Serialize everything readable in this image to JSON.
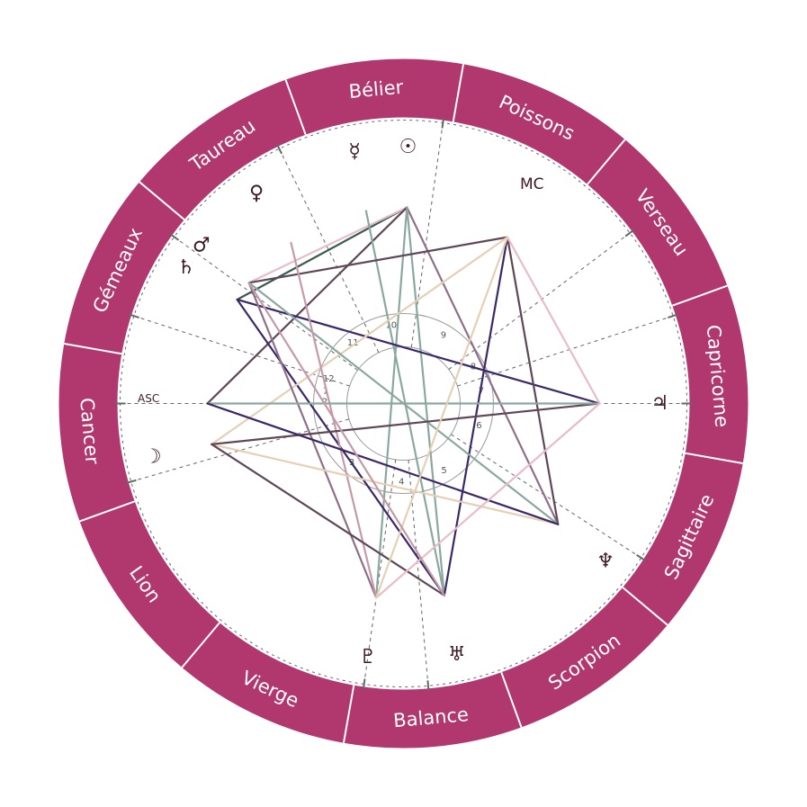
{
  "signs": [
    {
      "name": "Bélier",
      "mid": 95
    },
    {
      "name": "Poissons",
      "mid": 65
    },
    {
      "name": "Verseau",
      "mid": 35
    },
    {
      "name": "Capricorne",
      "mid": 5
    },
    {
      "name": "Sagittaire",
      "mid": -25
    },
    {
      "name": "Scorpion",
      "mid": -55
    },
    {
      "name": "Balance",
      "mid": -85
    },
    {
      "name": "Vierge",
      "mid": -115
    },
    {
      "name": "Lion",
      "mid": -145
    },
    {
      "name": "Cancer",
      "mid": -175
    },
    {
      "name": "Gémeaux",
      "mid": 155
    },
    {
      "name": "Taureau",
      "mid": 125
    }
  ],
  "houses": [
    {
      "num": "1",
      "cusp": 180
    },
    {
      "num": "2",
      "cusp": 162
    },
    {
      "num": "3",
      "cusp": 196
    },
    {
      "num": "4",
      "cusp": 262
    },
    {
      "num": "5",
      "cusp": -85
    },
    {
      "num": "6",
      "cusp": -33
    },
    {
      "num": "7",
      "cusp": 0
    },
    {
      "num": "8",
      "cusp": 18
    },
    {
      "num": "9",
      "cusp": 37
    },
    {
      "num": "10",
      "cusp": 82
    },
    {
      "num": "11",
      "cusp": 116
    },
    {
      "num": "12",
      "cusp": 144
    }
  ],
  "axes": {
    "asc": "ASC",
    "mc": "MC"
  },
  "planets": [
    {
      "id": "sun",
      "name": "Soleil",
      "glyph": "☉",
      "angle": 89
    },
    {
      "id": "mercury",
      "name": "Mercure",
      "glyph": "☿",
      "angle": 101
    },
    {
      "id": "venus",
      "name": "Vénus",
      "glyph": "♀",
      "angle": 125
    },
    {
      "id": "mars",
      "name": "Mars",
      "glyph": "♂",
      "angle": 142
    },
    {
      "id": "saturn",
      "name": "Saturne",
      "glyph": "♄",
      "angle": 148
    },
    {
      "id": "moon",
      "name": "Lune",
      "glyph": "☽",
      "angle": 192
    },
    {
      "id": "pluto",
      "name": "Pluton",
      "glyph": "♇",
      "angle": 262
    },
    {
      "id": "uranus",
      "name": "Uranus",
      "glyph": "♅",
      "angle": 282
    },
    {
      "id": "neptune",
      "name": "Neptune",
      "glyph": "♆",
      "angle": -38
    },
    {
      "id": "jupiter",
      "name": "Jupiter",
      "glyph": "♃",
      "angle": 0
    }
  ],
  "aspects": [
    {
      "from": "sun",
      "to": "pluto",
      "color": "#8aa89f"
    },
    {
      "from": "sun",
      "to": "saturn",
      "color": "#3b5a4f"
    },
    {
      "from": "sun",
      "to": "mars",
      "color": "#e8bcc8"
    },
    {
      "from": "sun",
      "to": "asc",
      "color": "#5e4757"
    },
    {
      "from": "sun",
      "to": "neptune",
      "color": "#8e7089"
    },
    {
      "from": "sun",
      "to": "uranus",
      "color": "#8aa89f"
    },
    {
      "from": "mercury",
      "to": "uranus",
      "color": "#8aa89f"
    },
    {
      "from": "saturn",
      "to": "uranus",
      "color": "#3a2868"
    },
    {
      "from": "saturn",
      "to": "jupiter",
      "color": "#3a2868"
    },
    {
      "from": "mc",
      "to": "mars",
      "color": "#5e4757"
    },
    {
      "from": "mc",
      "to": "uranus",
      "color": "#3a2868"
    },
    {
      "from": "mc",
      "to": "neptune",
      "color": "#5e4757"
    },
    {
      "from": "mc",
      "to": "jupiter",
      "color": "#e8bcc8"
    },
    {
      "from": "mc",
      "to": "moon",
      "color": "#e5cfb5"
    },
    {
      "from": "mars",
      "to": "neptune",
      "color": "#8aa89f"
    },
    {
      "from": "mars",
      "to": "pluto",
      "color": "#8e7089"
    },
    {
      "from": "venus",
      "to": "pluto",
      "color": "#c49aa8"
    },
    {
      "from": "moon",
      "to": "neptune",
      "color": "#e5cfb5"
    },
    {
      "from": "moon",
      "to": "uranus",
      "color": "#5e4757"
    },
    {
      "from": "moon",
      "to": "jupiter",
      "color": "#5e4757"
    },
    {
      "from": "asc",
      "to": "jupiter",
      "color": "#8aa89f"
    },
    {
      "from": "asc",
      "to": "neptune",
      "color": "#3a2868"
    },
    {
      "from": "pluto",
      "to": "jupiter",
      "color": "#e8bcc8"
    },
    {
      "from": "pluto",
      "to": "mc",
      "color": "#e5cfb5"
    },
    {
      "from": "uranus",
      "to": "mars",
      "color": "#c49aa8"
    }
  ],
  "colors": {
    "ring": "#b0386e",
    "ringDivider": "#ffffff",
    "houseLine": "#666666",
    "innerCircle": "#999999",
    "glyph": "#3d1a24"
  }
}
